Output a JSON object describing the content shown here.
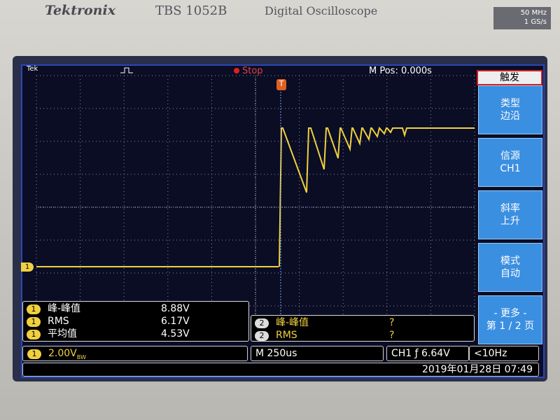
{
  "header": {
    "brand": "Tektronix",
    "model": "TBS 1052B",
    "product": "Digital Oscilloscope",
    "bandwidth": "50 MHz",
    "sample_rate": "1 GS/s"
  },
  "status_bar": {
    "logo": "Tek",
    "state": "Stop",
    "position": "M Pos: 0.000s"
  },
  "markers": {
    "channel": "1",
    "trigger": "T"
  },
  "menu": {
    "title": "触发",
    "items": [
      {
        "label": "类型",
        "value": "边沿"
      },
      {
        "label": "信源",
        "value": "CH1"
      },
      {
        "label": "斜率",
        "value": "上升"
      },
      {
        "label": "模式",
        "value": "自动"
      },
      {
        "label": "- 更多 -",
        "value": "第 1 / 2 页"
      }
    ]
  },
  "measurements_ch1": {
    "channel": "1",
    "rows": [
      {
        "name": "峰-峰值",
        "value": "8.88V"
      },
      {
        "name": "RMS",
        "value": "6.17V"
      },
      {
        "name": "平均值",
        "value": "4.53V"
      }
    ]
  },
  "measurements_ch2": {
    "channel": "2",
    "rows": [
      {
        "name": "峰-峰值",
        "value": "?"
      },
      {
        "name": "RMS",
        "value": "?"
      }
    ]
  },
  "bottom_bar": {
    "channel": "1",
    "scale": "2.00V",
    "scale_suffix": "BW",
    "timebase": "M 250us",
    "trigger": "CH1 ƒ 6.64V",
    "frequency": "<10Hz",
    "datetime": "2019年01月28日 07:49"
  }
}
